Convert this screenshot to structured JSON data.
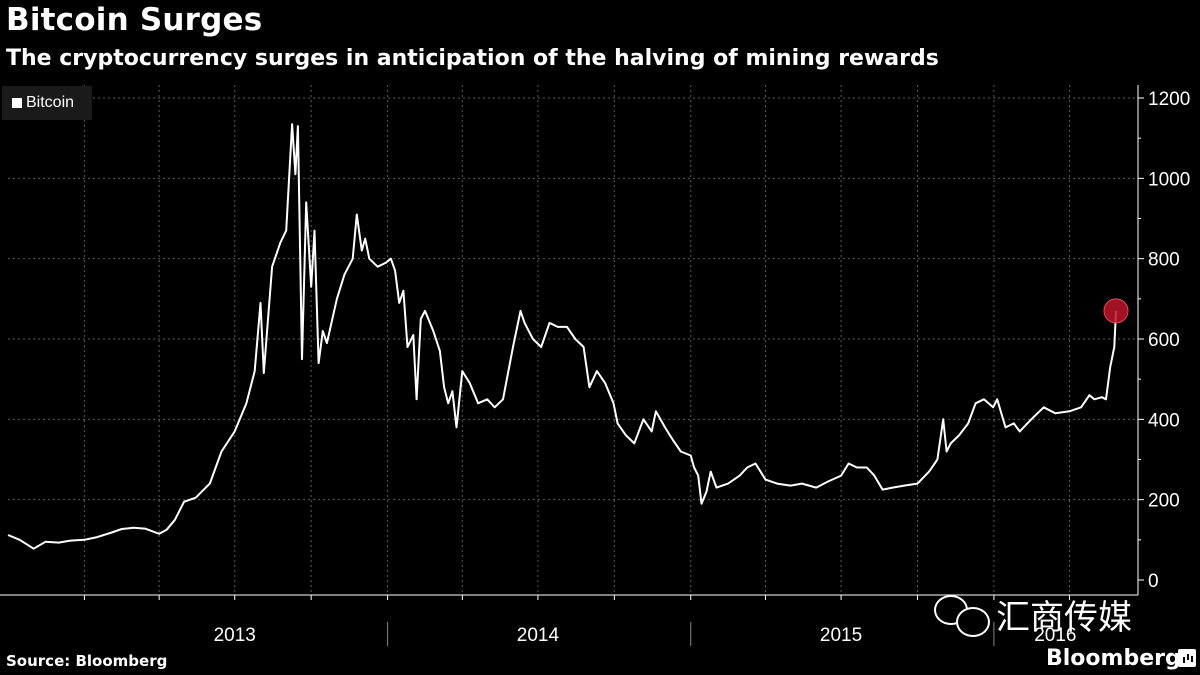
{
  "title": "Bitcoin Surges",
  "subtitle": "The cryptocurrency surges in anticipation of the halving of mining rewards",
  "source": "Source: Bloomberg",
  "brand": "Bloomberg",
  "watermark": "汇商传媒",
  "colors": {
    "background": "#000000",
    "line": "#ffffff",
    "marker": "#c0142b",
    "grid": "#5a5a5a"
  },
  "chart_data": {
    "type": "line",
    "title": "Bitcoin Surges",
    "subtitle": "The cryptocurrency surges in anticipation of the halving of mining rewards",
    "xlabel": "",
    "ylabel": "",
    "legend": {
      "entries": [
        "Bitcoin"
      ],
      "placement": "top-left"
    },
    "grid": true,
    "ylim": [
      0,
      1200
    ],
    "yticks": [
      0,
      200,
      400,
      600,
      800,
      1000,
      1200
    ],
    "xlim": [
      "2012-10-01",
      "2016-05-27"
    ],
    "x_tick_labels": [
      "2013",
      "2014",
      "2015",
      "2016"
    ],
    "series": [
      {
        "name": "Bitcoin",
        "points": [
          [
            "2012-10-01",
            112
          ],
          [
            "2012-10-15",
            100
          ],
          [
            "2012-11-01",
            78
          ],
          [
            "2012-11-15",
            95
          ],
          [
            "2012-12-01",
            93
          ],
          [
            "2012-12-15",
            98
          ],
          [
            "2013-01-01",
            100
          ],
          [
            "2013-01-15",
            106
          ],
          [
            "2013-02-01",
            117
          ],
          [
            "2013-02-15",
            127
          ],
          [
            "2013-03-01",
            130
          ],
          [
            "2013-03-15",
            128
          ],
          [
            "2013-04-01",
            115
          ],
          [
            "2013-04-10",
            125
          ],
          [
            "2013-04-20",
            150
          ],
          [
            "2013-05-01",
            195
          ],
          [
            "2013-05-15",
            205
          ],
          [
            "2013-06-01",
            240
          ],
          [
            "2013-06-15",
            320
          ],
          [
            "2013-07-01",
            370
          ],
          [
            "2013-07-15",
            440
          ],
          [
            "2013-07-25",
            520
          ],
          [
            "2013-08-01",
            690
          ],
          [
            "2013-08-05",
            515
          ],
          [
            "2013-08-15",
            780
          ],
          [
            "2013-08-25",
            840
          ],
          [
            "2013-09-01",
            870
          ],
          [
            "2013-09-08",
            1135
          ],
          [
            "2013-09-12",
            1010
          ],
          [
            "2013-09-15",
            1130
          ],
          [
            "2013-09-20",
            550
          ],
          [
            "2013-09-25",
            940
          ],
          [
            "2013-10-01",
            730
          ],
          [
            "2013-10-05",
            870
          ],
          [
            "2013-10-10",
            540
          ],
          [
            "2013-10-15",
            620
          ],
          [
            "2013-10-20",
            590
          ],
          [
            "2013-11-01",
            700
          ],
          [
            "2013-11-10",
            760
          ],
          [
            "2013-11-20",
            800
          ],
          [
            "2013-11-25",
            910
          ],
          [
            "2013-12-01",
            820
          ],
          [
            "2013-12-05",
            850
          ],
          [
            "2013-12-10",
            800
          ],
          [
            "2013-12-20",
            780
          ],
          [
            "2013-12-30",
            790
          ],
          [
            "2014-01-05",
            800
          ],
          [
            "2014-01-10",
            770
          ],
          [
            "2014-01-15",
            690
          ],
          [
            "2014-01-20",
            720
          ],
          [
            "2014-01-25",
            580
          ],
          [
            "2014-02-01",
            610
          ],
          [
            "2014-02-05",
            450
          ],
          [
            "2014-02-10",
            650
          ],
          [
            "2014-02-15",
            670
          ],
          [
            "2014-02-25",
            620
          ],
          [
            "2014-03-05",
            570
          ],
          [
            "2014-03-10",
            480
          ],
          [
            "2014-03-15",
            440
          ],
          [
            "2014-03-20",
            470
          ],
          [
            "2014-03-25",
            380
          ],
          [
            "2014-04-01",
            520
          ],
          [
            "2014-04-10",
            490
          ],
          [
            "2014-04-20",
            440
          ],
          [
            "2014-05-01",
            450
          ],
          [
            "2014-05-10",
            430
          ],
          [
            "2014-05-20",
            450
          ],
          [
            "2014-06-01",
            580
          ],
          [
            "2014-06-10",
            670
          ],
          [
            "2014-06-15",
            640
          ],
          [
            "2014-06-25",
            600
          ],
          [
            "2014-07-05",
            580
          ],
          [
            "2014-07-15",
            640
          ],
          [
            "2014-07-25",
            630
          ],
          [
            "2014-08-05",
            630
          ],
          [
            "2014-08-15",
            600
          ],
          [
            "2014-08-25",
            580
          ],
          [
            "2014-09-01",
            480
          ],
          [
            "2014-09-10",
            520
          ],
          [
            "2014-09-20",
            490
          ],
          [
            "2014-09-30",
            440
          ],
          [
            "2014-10-05",
            390
          ],
          [
            "2014-10-15",
            360
          ],
          [
            "2014-10-25",
            340
          ],
          [
            "2014-11-05",
            400
          ],
          [
            "2014-11-15",
            370
          ],
          [
            "2014-11-20",
            420
          ],
          [
            "2014-12-01",
            380
          ],
          [
            "2014-12-10",
            350
          ],
          [
            "2014-12-20",
            320
          ],
          [
            "2015-01-01",
            310
          ],
          [
            "2015-01-05",
            280
          ],
          [
            "2015-01-10",
            260
          ],
          [
            "2015-01-14",
            190
          ],
          [
            "2015-01-20",
            220
          ],
          [
            "2015-01-25",
            270
          ],
          [
            "2015-02-01",
            230
          ],
          [
            "2015-02-15",
            240
          ],
          [
            "2015-03-01",
            260
          ],
          [
            "2015-03-10",
            280
          ],
          [
            "2015-03-20",
            290
          ],
          [
            "2015-04-01",
            250
          ],
          [
            "2015-04-15",
            240
          ],
          [
            "2015-05-01",
            235
          ],
          [
            "2015-05-15",
            240
          ],
          [
            "2015-06-01",
            230
          ],
          [
            "2015-06-15",
            245
          ],
          [
            "2015-07-01",
            260
          ],
          [
            "2015-07-10",
            290
          ],
          [
            "2015-07-20",
            280
          ],
          [
            "2015-08-01",
            280
          ],
          [
            "2015-08-10",
            260
          ],
          [
            "2015-08-20",
            225
          ],
          [
            "2015-09-01",
            230
          ],
          [
            "2015-09-15",
            235
          ],
          [
            "2015-10-01",
            240
          ],
          [
            "2015-10-15",
            270
          ],
          [
            "2015-10-25",
            300
          ],
          [
            "2015-11-01",
            400
          ],
          [
            "2015-11-05",
            320
          ],
          [
            "2015-11-10",
            340
          ],
          [
            "2015-11-20",
            360
          ],
          [
            "2015-12-01",
            390
          ],
          [
            "2015-12-10",
            440
          ],
          [
            "2015-12-20",
            450
          ],
          [
            "2015-12-31",
            430
          ],
          [
            "2016-01-05",
            450
          ],
          [
            "2016-01-15",
            380
          ],
          [
            "2016-01-25",
            390
          ],
          [
            "2016-02-01",
            370
          ],
          [
            "2016-02-15",
            400
          ],
          [
            "2016-03-01",
            430
          ],
          [
            "2016-03-15",
            415
          ],
          [
            "2016-04-01",
            420
          ],
          [
            "2016-04-15",
            430
          ],
          [
            "2016-04-25",
            460
          ],
          [
            "2016-05-01",
            450
          ],
          [
            "2016-05-10",
            455
          ],
          [
            "2016-05-15",
            450
          ],
          [
            "2016-05-20",
            530
          ],
          [
            "2016-05-25",
            580
          ],
          [
            "2016-05-27",
            670
          ]
        ]
      }
    ],
    "annotations": [
      {
        "x": "2016-05-27",
        "y": 670,
        "shape": "circle-marker"
      }
    ]
  }
}
